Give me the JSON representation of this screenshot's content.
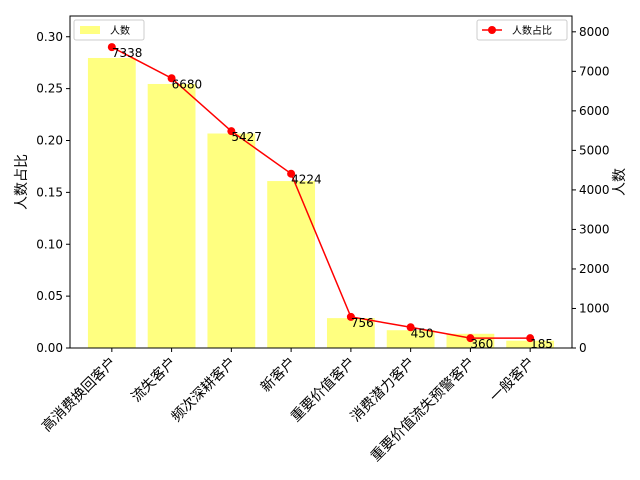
{
  "chart_data": {
    "type": "bar",
    "categories": [
      "高消费换回客户",
      "流失客户",
      "频次深耕客户",
      "新客户",
      "重要价值客户",
      "消费潜力客户",
      "重要价值流失预警客户",
      "一般客户"
    ],
    "series": [
      {
        "name": "人数",
        "type": "bar",
        "axis": "right",
        "color": "#ffff80",
        "values": [
          7338,
          6680,
          5427,
          4224,
          756,
          450,
          360,
          185
        ]
      },
      {
        "name": "人数占比",
        "type": "line",
        "axis": "left",
        "color": "#ff0000",
        "values": [
          0.29,
          0.26,
          0.209,
          0.168,
          0.03,
          0.02,
          0.0095,
          0.0095
        ]
      }
    ],
    "data_labels": [
      "7338",
      "6680",
      "5427",
      "4224",
      "756",
      "450",
      "360",
      "185"
    ],
    "ylabel_left": "人数占比",
    "ylabel_right": "人数",
    "ylim_left": [
      0,
      0.32
    ],
    "ylim_right": [
      0,
      8400
    ],
    "yticks_left": [
      "0.00",
      "0.05",
      "0.10",
      "0.15",
      "0.20",
      "0.25",
      "0.30"
    ],
    "yticks_right": [
      "0",
      "1000",
      "2000",
      "3000",
      "4000",
      "5000",
      "6000",
      "7000",
      "8000"
    ],
    "legend_left": {
      "label": "人数",
      "placement": "upper-left"
    },
    "legend_right": {
      "label": "人数占比",
      "placement": "upper-right"
    },
    "grid": false
  }
}
